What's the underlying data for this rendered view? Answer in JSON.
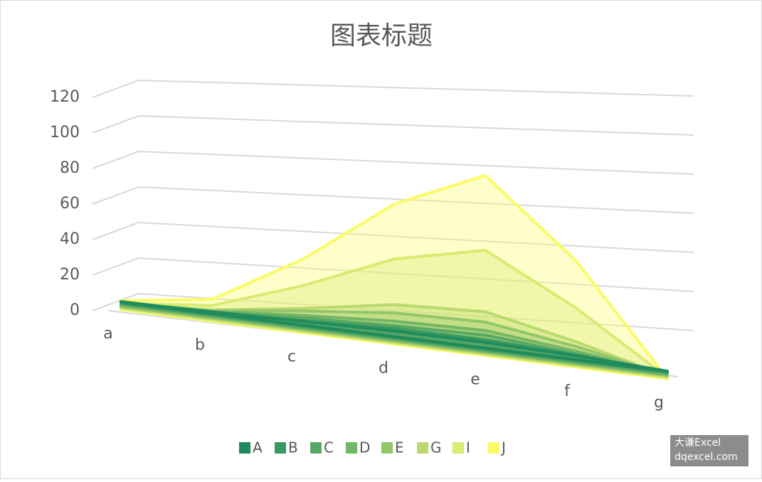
{
  "chart_data": {
    "type": "area",
    "title": "图表标题",
    "categories": [
      "a",
      "b",
      "c",
      "d",
      "e",
      "f",
      "g"
    ],
    "series": [
      {
        "name": "A",
        "color": "#1f8a5b",
        "values": [
          0,
          1,
          2,
          3,
          3,
          2,
          0
        ]
      },
      {
        "name": "B",
        "color": "#3b9a60",
        "values": [
          1,
          1,
          3,
          5,
          5,
          3,
          0
        ]
      },
      {
        "name": "C",
        "color": "#58a863",
        "values": [
          1,
          2,
          5,
          7,
          8,
          4,
          0
        ]
      },
      {
        "name": "D",
        "color": "#75b566",
        "values": [
          1,
          3,
          7,
          10,
          11,
          6,
          0
        ]
      },
      {
        "name": "E",
        "color": "#93c56a",
        "values": [
          2,
          4,
          10,
          15,
          16,
          9,
          0
        ]
      },
      {
        "name": "G",
        "color": "#b9d96e",
        "values": [
          2,
          5,
          12,
          20,
          22,
          12,
          0
        ]
      },
      {
        "name": "I",
        "color": "#d9eb70",
        "values": [
          3,
          8,
          25,
          45,
          55,
          30,
          0
        ]
      },
      {
        "name": "J",
        "color": "#fbfb66",
        "values": [
          5,
          12,
          40,
          75,
          95,
          55,
          0
        ]
      }
    ],
    "ylim": [
      0,
      120
    ],
    "yticks": [
      0,
      20,
      40,
      60,
      80,
      100,
      120
    ],
    "grid": true,
    "legend": "bottom",
    "watermark": [
      "大谦Excel",
      "dqexcel.com"
    ]
  }
}
